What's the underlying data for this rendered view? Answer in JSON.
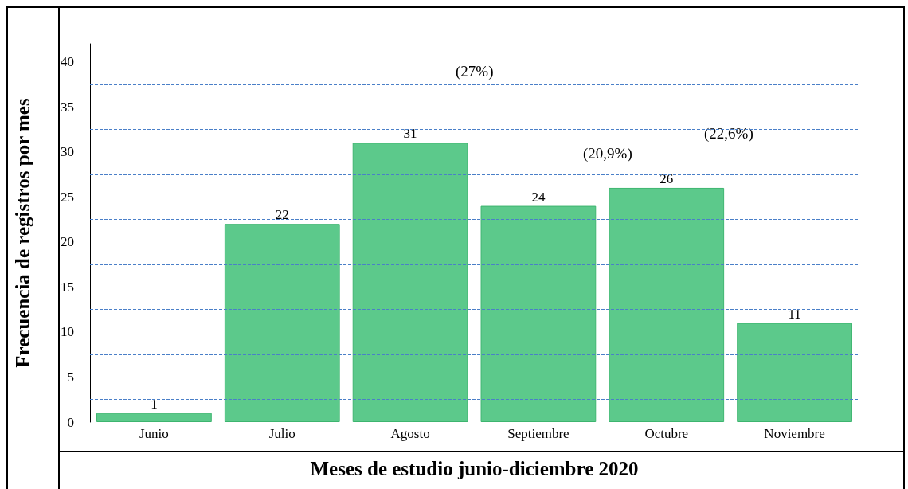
{
  "chart_data": {
    "type": "bar",
    "xlabel": "Meses de estudio junio-diciembre 2020",
    "ylabel": "Frecuencia de registros por mes",
    "categories": [
      "Junio",
      "Julio",
      "Agosto",
      "Septiembre",
      "Octubre",
      "Noviembre"
    ],
    "values": [
      1,
      22,
      31,
      24,
      26,
      11
    ],
    "color": "#5cc98b",
    "ylim": [
      0,
      42
    ],
    "yticks": [
      0,
      5,
      10,
      15,
      20,
      25,
      30,
      35,
      40
    ],
    "ref_lines": [
      {
        "axis": "y",
        "value": 2.5,
        "color": "#4a7fc8",
        "line_style": "dashed"
      },
      {
        "axis": "y",
        "value": 7.5,
        "color": "#4a7fc8",
        "line_style": "dashed"
      },
      {
        "axis": "y",
        "value": 12.5,
        "color": "#4a7fc8",
        "line_style": "dashed"
      },
      {
        "axis": "y",
        "value": 17.5,
        "color": "#4a7fc8",
        "line_style": "dashed"
      },
      {
        "axis": "y",
        "value": 22.5,
        "color": "#4a7fc8",
        "line_style": "dashed"
      },
      {
        "axis": "y",
        "value": 27.5,
        "color": "#4a7fc8",
        "line_style": "dashed"
      },
      {
        "axis": "y",
        "value": 32.5,
        "color": "#4a7fc8",
        "line_style": "dashed"
      },
      {
        "axis": "y",
        "value": 37.5,
        "color": "#4a7fc8",
        "line_style": "dashed"
      }
    ],
    "data_labels": true,
    "annotations": [
      "(27%)",
      "(20,9%)",
      "(22,6%)"
    ]
  }
}
